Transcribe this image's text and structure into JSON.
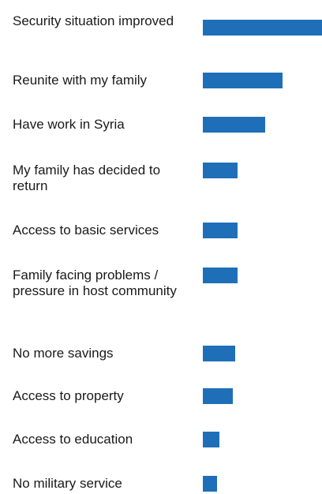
{
  "chart_data": {
    "type": "bar",
    "orientation": "horizontal",
    "bar_color": "#1f6fb8",
    "categories": [
      "Security situation improved",
      "Reunite with my family",
      "Have work in Syria",
      "My family has decided to return",
      "Access to basic services",
      "Family facing problems / pressure in host community",
      "No more savings",
      "Access to property",
      "Access to education",
      "No military service"
    ],
    "values": [
      100,
      67,
      52,
      29,
      29,
      29,
      27,
      25,
      14,
      12
    ],
    "xlim": [
      0,
      100
    ],
    "grid": false,
    "legend": "none"
  }
}
